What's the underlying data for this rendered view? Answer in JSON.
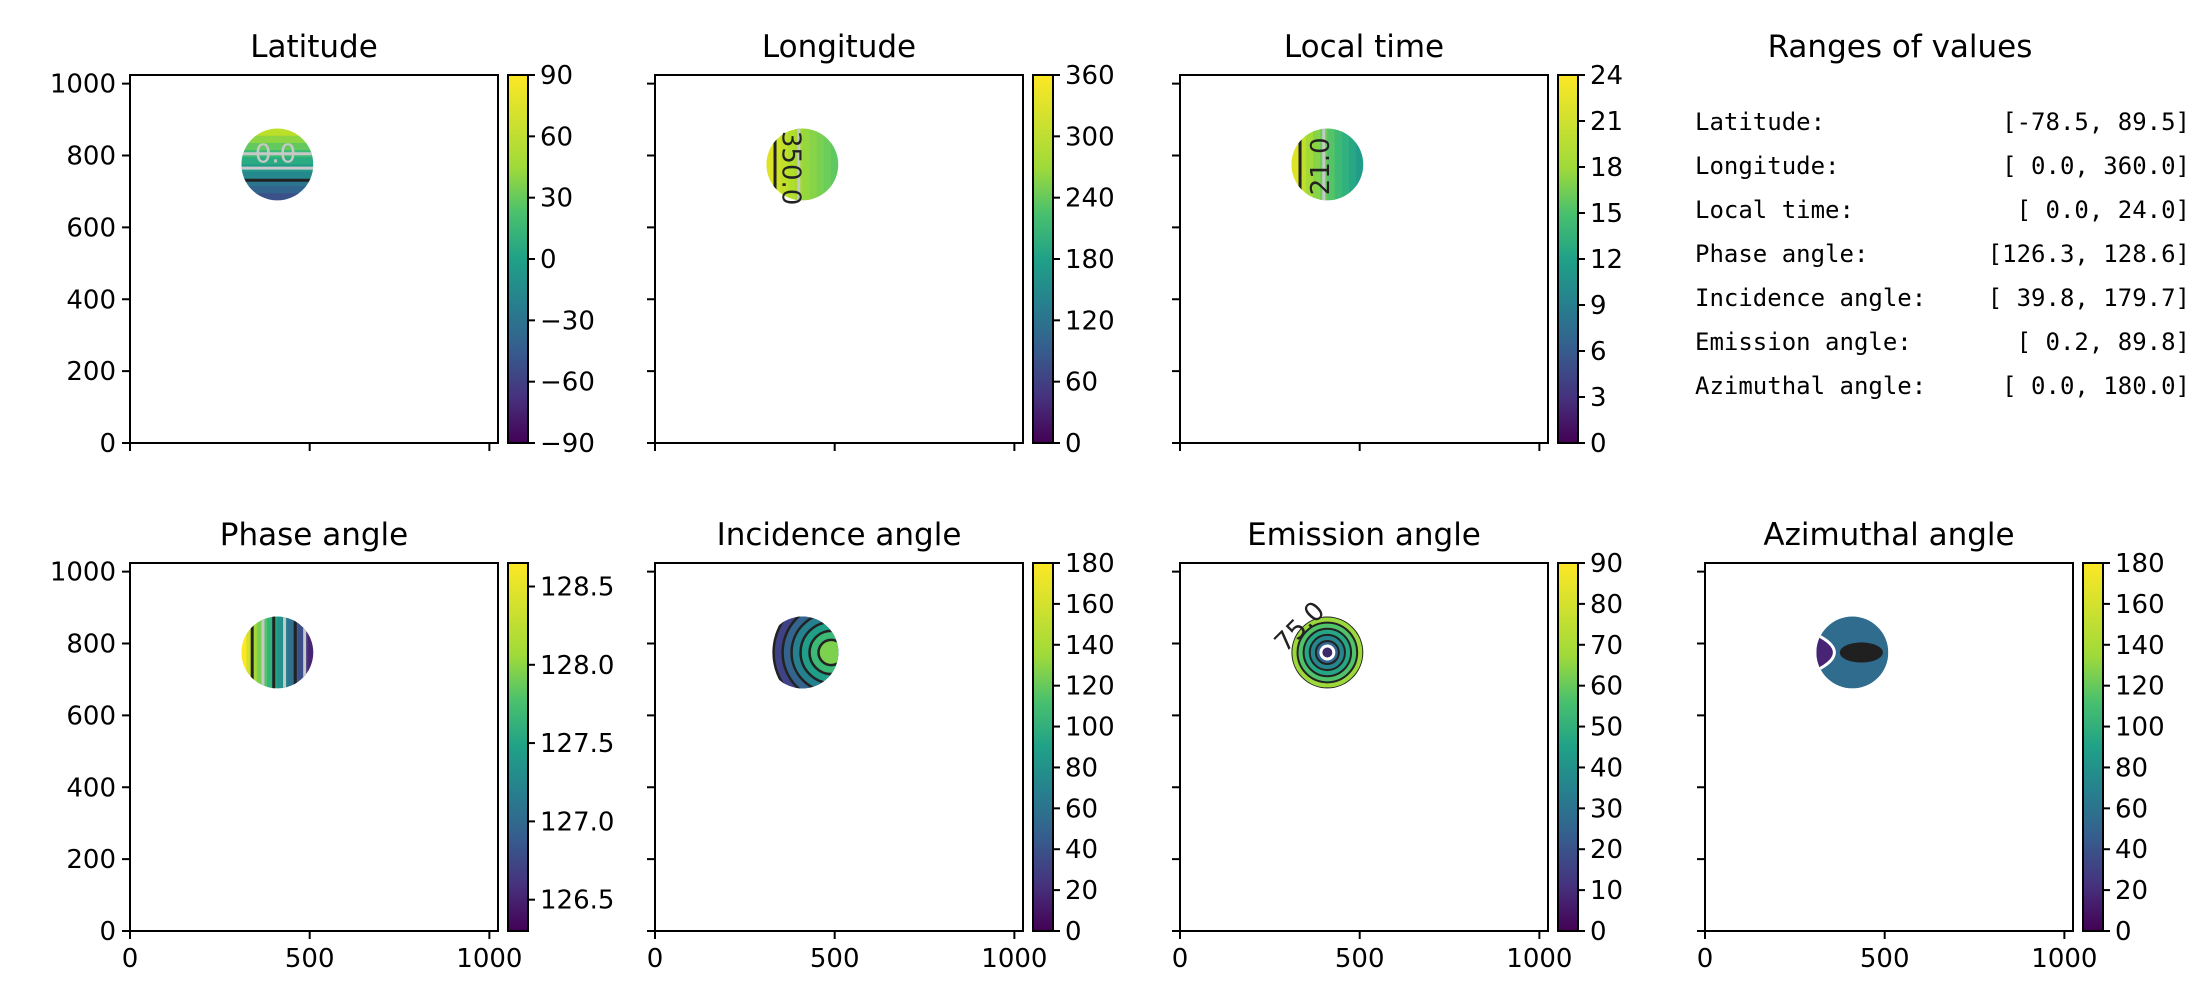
{
  "chart_data": [
    {
      "type": "heatmap",
      "title": "Latitude",
      "xlim": [
        0,
        1024
      ],
      "ylim": [
        0,
        1024
      ],
      "xticks": [
        0,
        500,
        1000
      ],
      "yticks": [
        0,
        200,
        400,
        600,
        800,
        1000
      ],
      "show_xticklabels": false,
      "show_yticklabels": true,
      "disk": {
        "cx": 410,
        "cy": 775,
        "r": 100
      },
      "colorbar": {
        "min": -90,
        "max": 90,
        "ticks": [
          "−90",
          "−60",
          "−30",
          "0",
          "30",
          "60",
          "90"
        ],
        "tick_values": [
          -90,
          -60,
          -30,
          0,
          30,
          60,
          90
        ]
      },
      "value_range": [
        -78.5,
        89.5
      ],
      "contour_labels": [
        "0.0"
      ]
    },
    {
      "type": "heatmap",
      "title": "Longitude",
      "xlim": [
        0,
        1024
      ],
      "ylim": [
        0,
        1024
      ],
      "xticks": [
        0,
        500,
        1000
      ],
      "yticks": [
        0,
        200,
        400,
        600,
        800,
        1000
      ],
      "show_xticklabels": false,
      "show_yticklabels": false,
      "disk": {
        "cx": 410,
        "cy": 775,
        "r": 100
      },
      "colorbar": {
        "min": 0,
        "max": 360,
        "ticks": [
          "0",
          "60",
          "120",
          "180",
          "240",
          "300",
          "360"
        ],
        "tick_values": [
          0,
          60,
          120,
          180,
          240,
          300,
          360
        ]
      },
      "value_range": [
        0.0,
        360.0
      ],
      "contour_labels": [
        "350.0"
      ]
    },
    {
      "type": "heatmap",
      "title": "Local time",
      "xlim": [
        0,
        1024
      ],
      "ylim": [
        0,
        1024
      ],
      "xticks": [
        0,
        500,
        1000
      ],
      "yticks": [
        0,
        200,
        400,
        600,
        800,
        1000
      ],
      "show_xticklabels": false,
      "show_yticklabels": false,
      "disk": {
        "cx": 410,
        "cy": 775,
        "r": 100
      },
      "colorbar": {
        "min": 0,
        "max": 24,
        "ticks": [
          "0",
          "3",
          "6",
          "9",
          "12",
          "15",
          "18",
          "21",
          "24"
        ],
        "tick_values": [
          0,
          3,
          6,
          9,
          12,
          15,
          18,
          21,
          24
        ]
      },
      "value_range": [
        0.0,
        24.0
      ],
      "contour_labels": [
        "21.0"
      ]
    },
    {
      "type": "table",
      "title": "Ranges of values",
      "rows": [
        {
          "label": "Latitude:",
          "range": "[-78.5,  89.5]"
        },
        {
          "label": "Longitude:",
          "range": "[  0.0, 360.0]"
        },
        {
          "label": "Local time:",
          "range": "[  0.0,  24.0]"
        },
        {
          "label": "Phase angle:",
          "range": "[126.3, 128.6]"
        },
        {
          "label": "Incidence angle:",
          "range": "[ 39.8, 179.7]"
        },
        {
          "label": "Emission angle:",
          "range": "[  0.2,  89.8]"
        },
        {
          "label": "Azimuthal angle:",
          "range": "[  0.0, 180.0]"
        }
      ]
    },
    {
      "type": "heatmap",
      "title": "Phase angle",
      "xlim": [
        0,
        1024
      ],
      "ylim": [
        0,
        1024
      ],
      "xticks": [
        0,
        500,
        1000
      ],
      "yticks": [
        0,
        200,
        400,
        600,
        800,
        1000
      ],
      "show_xticklabels": true,
      "show_yticklabels": true,
      "disk": {
        "cx": 410,
        "cy": 775,
        "r": 100
      },
      "colorbar": {
        "min": 126.3,
        "max": 128.65,
        "ticks": [
          "126.5",
          "127.0",
          "127.5",
          "128.0",
          "128.5"
        ],
        "tick_values": [
          126.5,
          127.0,
          127.5,
          128.0,
          128.5
        ]
      },
      "value_range": [
        126.3,
        128.6
      ],
      "contour_labels": []
    },
    {
      "type": "heatmap",
      "title": "Incidence angle",
      "xlim": [
        0,
        1024
      ],
      "ylim": [
        0,
        1024
      ],
      "xticks": [
        0,
        500,
        1000
      ],
      "yticks": [
        0,
        200,
        400,
        600,
        800,
        1000
      ],
      "show_xticklabels": true,
      "show_yticklabels": false,
      "disk": {
        "cx": 410,
        "cy": 775,
        "r": 100
      },
      "colorbar": {
        "min": 0,
        "max": 180,
        "ticks": [
          "0",
          "20",
          "40",
          "60",
          "80",
          "100",
          "120",
          "140",
          "160",
          "180"
        ],
        "tick_values": [
          0,
          20,
          40,
          60,
          80,
          100,
          120,
          140,
          160,
          180
        ]
      },
      "value_range": [
        39.8,
        179.7
      ],
      "contour_labels": []
    },
    {
      "type": "heatmap",
      "title": "Emission angle",
      "xlim": [
        0,
        1024
      ],
      "ylim": [
        0,
        1024
      ],
      "xticks": [
        0,
        500,
        1000
      ],
      "yticks": [
        0,
        200,
        400,
        600,
        800,
        1000
      ],
      "show_xticklabels": true,
      "show_yticklabels": false,
      "disk": {
        "cx": 410,
        "cy": 775,
        "r": 100
      },
      "colorbar": {
        "min": 0,
        "max": 90,
        "ticks": [
          "0",
          "10",
          "20",
          "30",
          "40",
          "50",
          "60",
          "70",
          "80",
          "90"
        ],
        "tick_values": [
          0,
          10,
          20,
          30,
          40,
          50,
          60,
          70,
          80,
          90
        ]
      },
      "value_range": [
        0.2,
        89.8
      ],
      "contour_labels": [
        "75.0"
      ]
    },
    {
      "type": "heatmap",
      "title": "Azimuthal angle",
      "xlim": [
        0,
        1024
      ],
      "ylim": [
        0,
        1024
      ],
      "xticks": [
        0,
        500,
        1000
      ],
      "yticks": [
        0,
        200,
        400,
        600,
        800,
        1000
      ],
      "show_xticklabels": true,
      "show_yticklabels": false,
      "disk": {
        "cx": 410,
        "cy": 775,
        "r": 100
      },
      "colorbar": {
        "min": 0,
        "max": 180,
        "ticks": [
          "0",
          "20",
          "40",
          "60",
          "80",
          "100",
          "120",
          "140",
          "160",
          "180"
        ],
        "tick_values": [
          0,
          20,
          40,
          60,
          80,
          100,
          120,
          140,
          160,
          180
        ]
      },
      "value_range": [
        0.0,
        180.0
      ],
      "contour_labels": []
    }
  ],
  "colormap": "viridis",
  "colors": {
    "contour_dark": "#222222",
    "contour_light": "#c8c8c8"
  }
}
